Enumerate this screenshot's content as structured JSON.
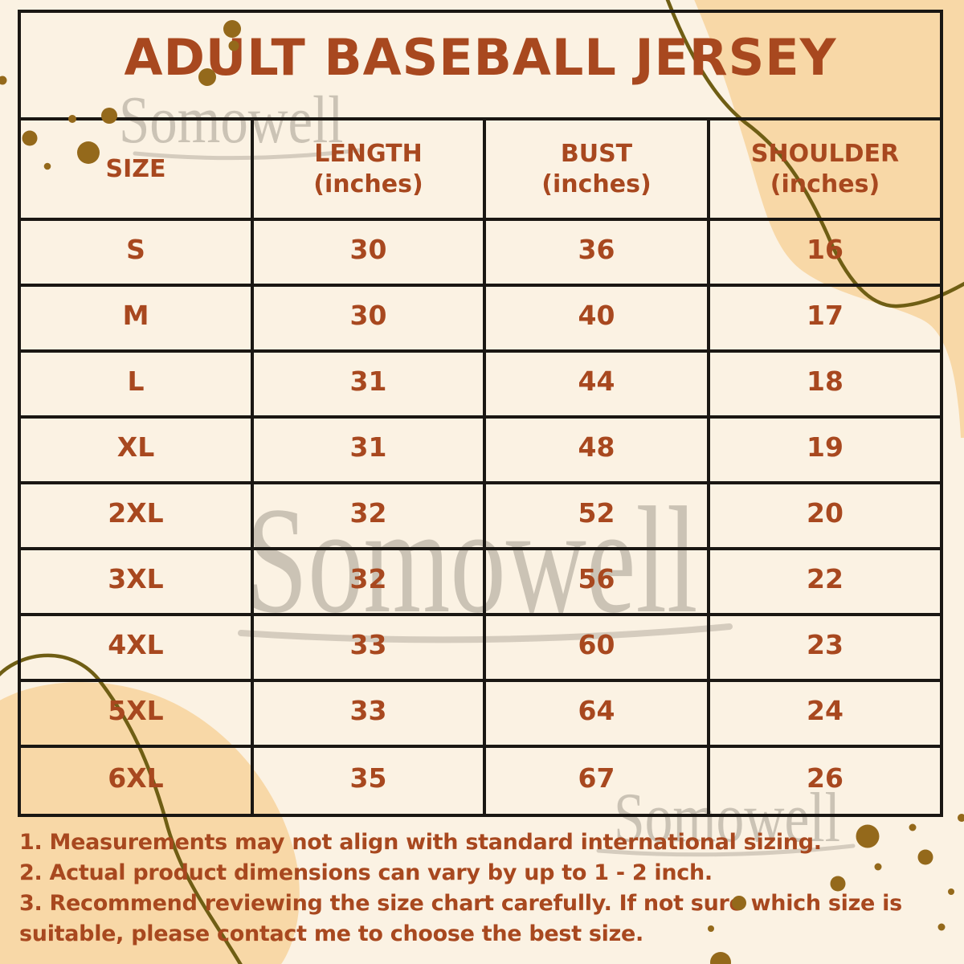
{
  "title": "ADULT BASEBALL JERSEY",
  "watermark": {
    "text": "Somowell"
  },
  "table": {
    "columns": [
      {
        "label": "SIZE",
        "sub": ""
      },
      {
        "label": "LENGTH",
        "sub": "(inches)"
      },
      {
        "label": "BUST",
        "sub": "(inches)"
      },
      {
        "label": "SHOULDER",
        "sub": "(inches)"
      }
    ],
    "rows": [
      {
        "size": "S",
        "length": "30",
        "bust": "36",
        "shoulder": "16"
      },
      {
        "size": "M",
        "length": "30",
        "bust": "40",
        "shoulder": "17"
      },
      {
        "size": "L",
        "length": "31",
        "bust": "44",
        "shoulder": "18"
      },
      {
        "size": "XL",
        "length": "31",
        "bust": "48",
        "shoulder": "19"
      },
      {
        "size": "2XL",
        "length": "32",
        "bust": "52",
        "shoulder": "20"
      },
      {
        "size": "3XL",
        "length": "32",
        "bust": "56",
        "shoulder": "22"
      },
      {
        "size": "4XL",
        "length": "33",
        "bust": "60",
        "shoulder": "23"
      },
      {
        "size": "5XL",
        "length": "33",
        "bust": "64",
        "shoulder": "24"
      },
      {
        "size": "6XL",
        "length": "35",
        "bust": "67",
        "shoulder": "26"
      }
    ]
  },
  "notes": [
    "1. Measurements may not align with standard international sizing.",
    "2. Actual product dimensions can vary by up to 1 - 2 inch.",
    "3. Recommend reviewing the size chart carefully. If not sure which size is suitable, please contact me to choose the best size."
  ],
  "colors": {
    "background": "#FBF2E3",
    "text_rust": "#A8481F",
    "table_border": "#1A1713",
    "blob_peach": "#F8D8A7",
    "dot_olive": "#94691B",
    "line_olive": "#6F5E14",
    "watermark_gray": "#C9C2B8"
  }
}
